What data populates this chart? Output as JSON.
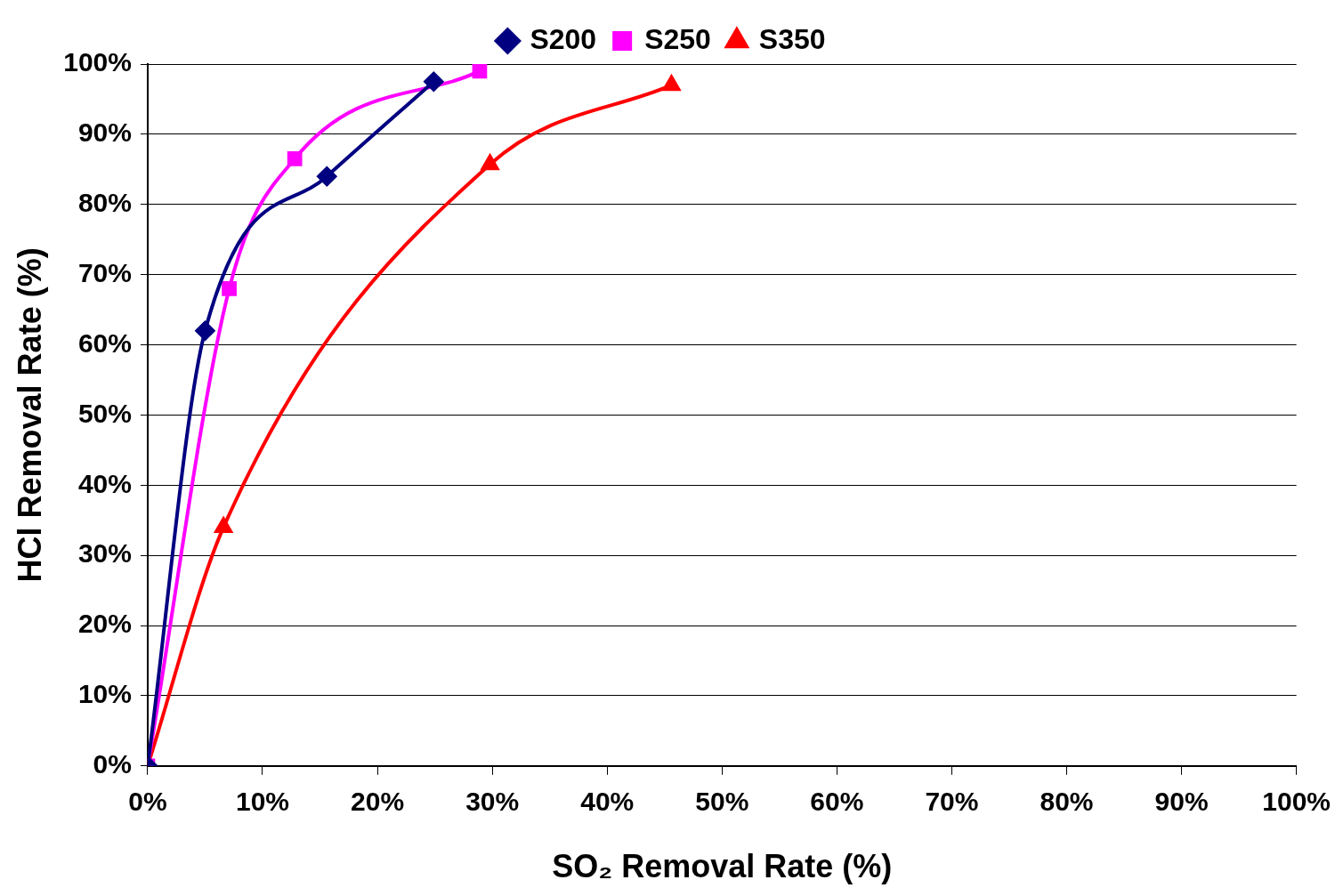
{
  "chart_data": {
    "type": "line",
    "xlabel": "SO₂ Removal Rate (%)",
    "ylabel": "HCl Removal Rate (%)",
    "xlim": [
      0,
      100
    ],
    "ylim": [
      0,
      100
    ],
    "xticks": [
      {
        "value": 0,
        "label": "0%"
      },
      {
        "value": 10,
        "label": "10%"
      },
      {
        "value": 20,
        "label": "20%"
      },
      {
        "value": 30,
        "label": "30%"
      },
      {
        "value": 40,
        "label": "40%"
      },
      {
        "value": 50,
        "label": "50%"
      },
      {
        "value": 60,
        "label": "60%"
      },
      {
        "value": 70,
        "label": "70%"
      },
      {
        "value": 80,
        "label": "80%"
      },
      {
        "value": 90,
        "label": "90%"
      },
      {
        "value": 100,
        "label": "100%"
      }
    ],
    "yticks": [
      {
        "value": 0,
        "label": "0%"
      },
      {
        "value": 10,
        "label": "10%"
      },
      {
        "value": 20,
        "label": "20%"
      },
      {
        "value": 30,
        "label": "30%"
      },
      {
        "value": 40,
        "label": "40%"
      },
      {
        "value": 50,
        "label": "50%"
      },
      {
        "value": 60,
        "label": "60%"
      },
      {
        "value": 70,
        "label": "70%"
      },
      {
        "value": 80,
        "label": "80%"
      },
      {
        "value": 90,
        "label": "90%"
      },
      {
        "value": 100,
        "label": "100%"
      }
    ],
    "grid": "y",
    "legend": "top",
    "series": [
      {
        "name": "S200",
        "color": "#000080",
        "marker": "diamond",
        "x": [
          0,
          5.0,
          15.6,
          24.9
        ],
        "values": [
          0,
          62,
          84,
          97.5
        ]
      },
      {
        "name": "S250",
        "color": "#ff00ff",
        "marker": "square",
        "x": [
          0,
          7.1,
          12.8,
          28.9
        ],
        "values": [
          0,
          68,
          86.5,
          99
        ]
      },
      {
        "name": "S350",
        "color": "#ff0000",
        "marker": "triangle",
        "x": [
          0,
          6.6,
          29.8,
          45.6
        ],
        "values": [
          0,
          34,
          85.7,
          97
        ]
      }
    ]
  }
}
